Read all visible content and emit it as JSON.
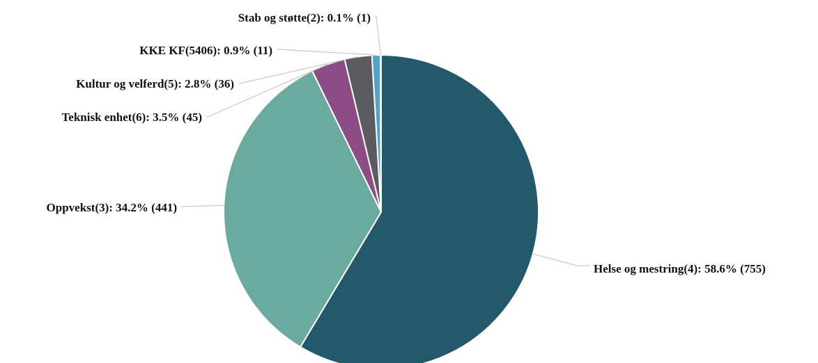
{
  "chart_data": {
    "type": "pie",
    "title": "",
    "slices": [
      {
        "category": "Helse og mestring(4)",
        "percent_label": "58.6%",
        "value": 755,
        "color": "#24586B",
        "label": "Helse og mestring(4): 58.6% (755)"
      },
      {
        "category": "Oppvekst(3)",
        "percent_label": "34.2%",
        "value": 441,
        "color": "#6BAA9F",
        "label": "Oppvekst(3): 34.2% (441)"
      },
      {
        "category": "Teknisk enhet(6)",
        "percent_label": "3.5%",
        "value": 45,
        "color": "#8B4D83",
        "label": "Teknisk enhet(6): 3.5% (45)"
      },
      {
        "category": "Kultur og velferd(5)",
        "percent_label": "2.8%",
        "value": 36,
        "color": "#5B5B60",
        "label": "Kultur og velferd(5): 2.8% (36)"
      },
      {
        "category": "KKE KF(5406)",
        "percent_label": "0.9%",
        "value": 11,
        "color": "#4FA3CC",
        "label": "KKE KF(5406): 0.9% (11)"
      },
      {
        "category": "Stab og støtte(2)",
        "percent_label": "0.1%",
        "value": 1,
        "color": "#9FC8DD",
        "label": "Stab og støtte(2): 0.1% (1)"
      }
    ]
  }
}
